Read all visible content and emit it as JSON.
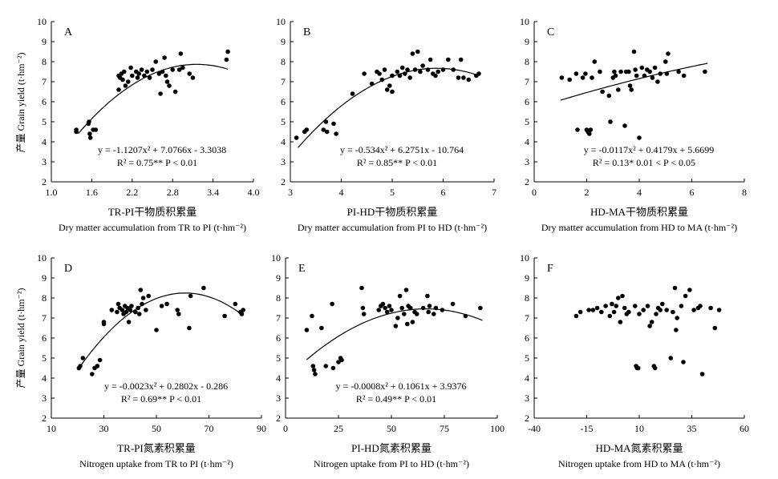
{
  "figure": {
    "ylabel_cn": "产量",
    "ylabel_en": "Grain yield",
    "ylabel_unit": "(t·hm⁻²)"
  },
  "chart_data": [
    {
      "type": "scatter",
      "panel": "A",
      "xlim": [
        1.0,
        4.0
      ],
      "xticks": [
        "1.0",
        "1.6",
        "2.2",
        "2.8",
        "3.4",
        "4.0"
      ],
      "ylim": [
        2,
        10
      ],
      "yticks": [
        "2",
        "3",
        "4",
        "5",
        "6",
        "7",
        "8",
        "9",
        "10"
      ],
      "xlabel_cn": "TR-PI干物质积累量",
      "xlabel_en": "Dry matter accumulation from TR to PI",
      "xlabel_unit": "(t·hm⁻²)",
      "equation": "y = -1.1207x² + 7.0766x - 3.3038",
      "r2": "R² = 0.75**  P < 0.01",
      "fit": {
        "a": -1.1207,
        "b": 7.0766,
        "c": -3.3038,
        "x_from": 1.4,
        "x_to": 3.62
      },
      "points": [
        [
          1.37,
          4.6
        ],
        [
          1.37,
          4.5
        ],
        [
          1.55,
          4.9
        ],
        [
          1.56,
          5.0
        ],
        [
          1.57,
          4.4
        ],
        [
          1.58,
          4.2
        ],
        [
          1.62,
          4.6
        ],
        [
          1.66,
          4.6
        ],
        [
          2.0,
          7.3
        ],
        [
          2.0,
          6.6
        ],
        [
          2.02,
          7.2
        ],
        [
          2.04,
          7.4
        ],
        [
          2.06,
          7.1
        ],
        [
          2.08,
          7.5
        ],
        [
          2.1,
          6.8
        ],
        [
          2.14,
          7.0
        ],
        [
          2.18,
          7.7
        ],
        [
          2.2,
          7.3
        ],
        [
          2.26,
          7.5
        ],
        [
          2.28,
          7.2
        ],
        [
          2.3,
          7.4
        ],
        [
          2.34,
          7.6
        ],
        [
          2.38,
          7.3
        ],
        [
          2.42,
          7.5
        ],
        [
          2.46,
          7.2
        ],
        [
          2.5,
          7.6
        ],
        [
          2.55,
          8.0
        ],
        [
          2.6,
          7.4
        ],
        [
          2.62,
          6.4
        ],
        [
          2.65,
          7.5
        ],
        [
          2.68,
          8.2
        ],
        [
          2.7,
          7.3
        ],
        [
          2.72,
          7.0
        ],
        [
          2.75,
          6.8
        ],
        [
          2.8,
          7.6
        ],
        [
          2.84,
          6.5
        ],
        [
          2.9,
          7.6
        ],
        [
          2.92,
          8.4
        ],
        [
          2.95,
          7.7
        ],
        [
          3.05,
          7.4
        ],
        [
          3.1,
          7.2
        ],
        [
          3.6,
          8.1
        ],
        [
          3.62,
          8.5
        ]
      ]
    },
    {
      "type": "scatter",
      "panel": "B",
      "xlim": [
        3,
        7
      ],
      "xticks": [
        "3",
        "4",
        "5",
        "6",
        "7"
      ],
      "ylim": [
        2,
        10
      ],
      "yticks": [
        "2",
        "3",
        "4",
        "5",
        "6",
        "7",
        "8",
        "9",
        "10"
      ],
      "xlabel_cn": "PI-HD干物质积累量",
      "xlabel_en": "Dry matter accumulation from PI to HD",
      "xlabel_unit": "(t·hm⁻²)",
      "equation": "y = -0.534x² + 6.2751x - 10.764",
      "r2": "R² = 0.85**  P < 0.01",
      "fit": {
        "a": -0.534,
        "b": 6.2751,
        "c": -10.764,
        "x_from": 3.15,
        "x_to": 6.7
      },
      "points": [
        [
          3.12,
          4.2
        ],
        [
          3.28,
          4.5
        ],
        [
          3.32,
          4.6
        ],
        [
          3.65,
          4.6
        ],
        [
          3.7,
          5.0
        ],
        [
          3.72,
          4.5
        ],
        [
          3.85,
          4.9
        ],
        [
          3.9,
          4.4
        ],
        [
          4.22,
          6.4
        ],
        [
          4.45,
          7.4
        ],
        [
          4.6,
          6.9
        ],
        [
          4.7,
          7.5
        ],
        [
          4.75,
          7.4
        ],
        [
          4.8,
          7.1
        ],
        [
          4.85,
          7.6
        ],
        [
          4.9,
          6.6
        ],
        [
          4.95,
          6.8
        ],
        [
          5.0,
          7.3
        ],
        [
          5.0,
          6.5
        ],
        [
          5.1,
          7.5
        ],
        [
          5.15,
          7.3
        ],
        [
          5.2,
          7.7
        ],
        [
          5.25,
          7.4
        ],
        [
          5.3,
          7.6
        ],
        [
          5.35,
          7.2
        ],
        [
          5.4,
          8.4
        ],
        [
          5.45,
          7.6
        ],
        [
          5.5,
          8.5
        ],
        [
          5.55,
          7.5
        ],
        [
          5.6,
          7.8
        ],
        [
          5.7,
          7.6
        ],
        [
          5.75,
          8.1
        ],
        [
          5.8,
          7.4
        ],
        [
          5.85,
          7.3
        ],
        [
          5.9,
          7.5
        ],
        [
          6.0,
          7.6
        ],
        [
          6.1,
          8.1
        ],
        [
          6.2,
          7.6
        ],
        [
          6.3,
          7.2
        ],
        [
          6.35,
          8.1
        ],
        [
          6.4,
          7.2
        ],
        [
          6.5,
          7.1
        ],
        [
          6.65,
          7.3
        ],
        [
          6.7,
          7.4
        ]
      ]
    },
    {
      "type": "scatter",
      "panel": "C",
      "xlim": [
        0,
        8
      ],
      "xticks": [
        "0",
        "2",
        "4",
        "6",
        "8"
      ],
      "ylim": [
        2,
        10
      ],
      "yticks": [
        "2",
        "3",
        "4",
        "5",
        "6",
        "7",
        "8",
        "9",
        "10"
      ],
      "xlabel_cn": "HD-MA干物质积累量",
      "xlabel_en": "Dry matter accumulation from HD to MA",
      "xlabel_unit": "(t·hm⁻²)",
      "equation": "y = -0.0117x² + 0.4179x + 5.6699",
      "r2": "R² = 0.13*  0.01 < P < 0.05",
      "fit": {
        "a": -0.0117,
        "b": 0.4179,
        "c": 5.6699,
        "x_from": 1.0,
        "x_to": 6.6
      },
      "points": [
        [
          1.05,
          7.2
        ],
        [
          1.35,
          7.1
        ],
        [
          1.6,
          7.4
        ],
        [
          1.65,
          4.6
        ],
        [
          1.85,
          7.2
        ],
        [
          1.95,
          7.4
        ],
        [
          2.0,
          4.6
        ],
        [
          2.05,
          4.5
        ],
        [
          2.1,
          4.4
        ],
        [
          2.15,
          4.6
        ],
        [
          2.2,
          7.2
        ],
        [
          2.3,
          8.0
        ],
        [
          2.5,
          7.5
        ],
        [
          2.6,
          6.5
        ],
        [
          2.85,
          6.3
        ],
        [
          2.9,
          5.0
        ],
        [
          3.0,
          7.2
        ],
        [
          3.05,
          7.5
        ],
        [
          3.1,
          7.3
        ],
        [
          3.2,
          6.6
        ],
        [
          3.3,
          7.5
        ],
        [
          3.45,
          4.8
        ],
        [
          3.5,
          7.5
        ],
        [
          3.6,
          7.5
        ],
        [
          3.65,
          6.8
        ],
        [
          3.7,
          6.6
        ],
        [
          3.8,
          8.5
        ],
        [
          3.85,
          7.6
        ],
        [
          3.9,
          7.3
        ],
        [
          4.0,
          4.2
        ],
        [
          4.1,
          7.7
        ],
        [
          4.2,
          7.3
        ],
        [
          4.3,
          7.6
        ],
        [
          4.4,
          7.5
        ],
        [
          4.5,
          7.2
        ],
        [
          4.6,
          7.7
        ],
        [
          4.7,
          7.0
        ],
        [
          4.8,
          7.4
        ],
        [
          5.0,
          8.0
        ],
        [
          5.05,
          7.4
        ],
        [
          5.1,
          8.4
        ],
        [
          5.5,
          7.5
        ],
        [
          5.7,
          7.3
        ],
        [
          6.5,
          7.5
        ]
      ]
    },
    {
      "type": "scatter",
      "panel": "D",
      "xlim": [
        10,
        90
      ],
      "xticks": [
        "10",
        "30",
        "50",
        "70",
        "90"
      ],
      "ylim": [
        2,
        10
      ],
      "yticks": [
        "2",
        "3",
        "4",
        "5",
        "6",
        "7",
        "8",
        "9",
        "10"
      ],
      "xlabel_cn": "TR-PI氮素积累量",
      "xlabel_en": "Nitrogen uptake from TR to PI",
      "xlabel_unit": "(t·hm⁻²)",
      "equation": "y = -0.0023x² + 0.2802x - 0.286",
      "r2": "R² = 0.69**  P < 0.01",
      "fit": {
        "a": -0.0023,
        "b": 0.2802,
        "c": -0.286,
        "x_from": 20,
        "x_to": 83
      },
      "points": [
        [
          20.5,
          4.5
        ],
        [
          21,
          4.6
        ],
        [
          22,
          5.0
        ],
        [
          25.5,
          4.2
        ],
        [
          26.5,
          4.5
        ],
        [
          27.5,
          4.6
        ],
        [
          28.5,
          4.9
        ],
        [
          30,
          6.8
        ],
        [
          30,
          6.7
        ],
        [
          33,
          7.4
        ],
        [
          35,
          7.3
        ],
        [
          35.5,
          7.7
        ],
        [
          36,
          7.5
        ],
        [
          37,
          7.4
        ],
        [
          37.5,
          7.2
        ],
        [
          38,
          7.6
        ],
        [
          38.5,
          7.3
        ],
        [
          39,
          7.5
        ],
        [
          39.5,
          6.8
        ],
        [
          40,
          7.4
        ],
        [
          40.5,
          7.6
        ],
        [
          42,
          7.3
        ],
        [
          43,
          7.5
        ],
        [
          43.5,
          7.2
        ],
        [
          44,
          8.4
        ],
        [
          44.5,
          7.7
        ],
        [
          45,
          8.0
        ],
        [
          46,
          7.4
        ],
        [
          47,
          8.1
        ],
        [
          50,
          6.4
        ],
        [
          52,
          7.6
        ],
        [
          54,
          7.7
        ],
        [
          58,
          7.4
        ],
        [
          58.5,
          7.2
        ],
        [
          62.5,
          6.5
        ],
        [
          63,
          8.1
        ],
        [
          68,
          8.5
        ],
        [
          76,
          7.1
        ],
        [
          80,
          7.7
        ],
        [
          82,
          7.3
        ],
        [
          82.5,
          7.2
        ],
        [
          83,
          7.4
        ]
      ]
    },
    {
      "type": "scatter",
      "panel": "E",
      "xlim": [
        0,
        100
      ],
      "xticks": [
        "0",
        "25",
        "50",
        "75",
        "100"
      ],
      "ylim": [
        2,
        10
      ],
      "yticks": [
        "2",
        "3",
        "4",
        "5",
        "6",
        "7",
        "8",
        "9",
        "10"
      ],
      "xlabel_cn": "PI-HD氮素积累量",
      "xlabel_en": "Nitrogen uptake from PI to HD",
      "xlabel_unit": "(t·hm⁻²)",
      "equation": "y = -0.0008x² + 0.1061x + 3.9376",
      "r2": "R² = 0.49**  P < 0.01",
      "fit": {
        "a": -0.0008,
        "b": 0.1061,
        "c": 3.9376,
        "x_from": 10,
        "x_to": 93
      },
      "points": [
        [
          10,
          6.4
        ],
        [
          12.5,
          7.1
        ],
        [
          13,
          4.6
        ],
        [
          13.5,
          4.4
        ],
        [
          14,
          4.2
        ],
        [
          17,
          6.5
        ],
        [
          19,
          4.6
        ],
        [
          22,
          7.7
        ],
        [
          22.5,
          4.5
        ],
        [
          25,
          4.8
        ],
        [
          26,
          5.0
        ],
        [
          26.5,
          4.9
        ],
        [
          36,
          8.5
        ],
        [
          36.5,
          7.5
        ],
        [
          37,
          7.2
        ],
        [
          44,
          7.4
        ],
        [
          45,
          7.6
        ],
        [
          46,
          7.7
        ],
        [
          47,
          7.5
        ],
        [
          48,
          7.3
        ],
        [
          49,
          7.6
        ],
        [
          50,
          7.4
        ],
        [
          52,
          6.6
        ],
        [
          53,
          7.0
        ],
        [
          54,
          8.1
        ],
        [
          55,
          7.5
        ],
        [
          56,
          7.2
        ],
        [
          57,
          8.4
        ],
        [
          57.5,
          6.7
        ],
        [
          58,
          7.6
        ],
        [
          59,
          7.5
        ],
        [
          60,
          6.8
        ],
        [
          61,
          7.3
        ],
        [
          62,
          7.2
        ],
        [
          65,
          7.5
        ],
        [
          67,
          8.1
        ],
        [
          67.5,
          7.3
        ],
        [
          68,
          7.6
        ],
        [
          70,
          7.2
        ],
        [
          71,
          7.5
        ],
        [
          74,
          7.4
        ],
        [
          79,
          7.7
        ],
        [
          85,
          7.1
        ],
        [
          92,
          7.5
        ]
      ]
    },
    {
      "type": "scatter",
      "panel": "F",
      "xlim": [
        -40,
        60
      ],
      "xticks": [
        "-40",
        "-15",
        "10",
        "35",
        "60"
      ],
      "ylim": [
        2,
        10
      ],
      "yticks": [
        "2",
        "3",
        "4",
        "5",
        "6",
        "7",
        "8",
        "9",
        "10"
      ],
      "xlabel_cn": "HD-MA氮素积累量",
      "xlabel_en": "Nitrogen uptake from HD to MA",
      "xlabel_unit": "(t·hm⁻²)",
      "points": [
        [
          -20,
          7.1
        ],
        [
          -18,
          7.3
        ],
        [
          -14,
          7.4
        ],
        [
          -12,
          7.4
        ],
        [
          -10,
          7.5
        ],
        [
          -8,
          7.3
        ],
        [
          -6,
          7.6
        ],
        [
          -4,
          7.1
        ],
        [
          -3,
          7.7
        ],
        [
          -2,
          7.3
        ],
        [
          -1,
          7.6
        ],
        [
          0,
          8.0
        ],
        [
          1,
          6.8
        ],
        [
          2,
          8.1
        ],
        [
          3,
          7.5
        ],
        [
          4,
          7.2
        ],
        [
          5,
          7.3
        ],
        [
          8,
          7.6
        ],
        [
          8.5,
          4.6
        ],
        [
          9,
          4.5
        ],
        [
          9.5,
          4.5
        ],
        [
          10,
          7.2
        ],
        [
          12,
          7.4
        ],
        [
          14,
          7.6
        ],
        [
          15,
          6.6
        ],
        [
          16,
          6.8
        ],
        [
          17,
          4.6
        ],
        [
          17.5,
          4.5
        ],
        [
          18,
          7.2
        ],
        [
          19,
          7.5
        ],
        [
          20,
          7.4
        ],
        [
          21,
          7.7
        ],
        [
          23,
          7.4
        ],
        [
          25,
          5.0
        ],
        [
          26,
          7.3
        ],
        [
          27,
          8.5
        ],
        [
          27.5,
          6.4
        ],
        [
          28,
          7.0
        ],
        [
          30,
          7.6
        ],
        [
          31,
          4.8
        ],
        [
          32,
          8.1
        ],
        [
          34,
          8.4
        ],
        [
          36,
          7.4
        ],
        [
          38,
          7.5
        ],
        [
          39,
          7.6
        ],
        [
          40,
          4.2
        ],
        [
          44,
          7.5
        ],
        [
          46,
          6.5
        ],
        [
          48,
          7.4
        ]
      ]
    }
  ]
}
